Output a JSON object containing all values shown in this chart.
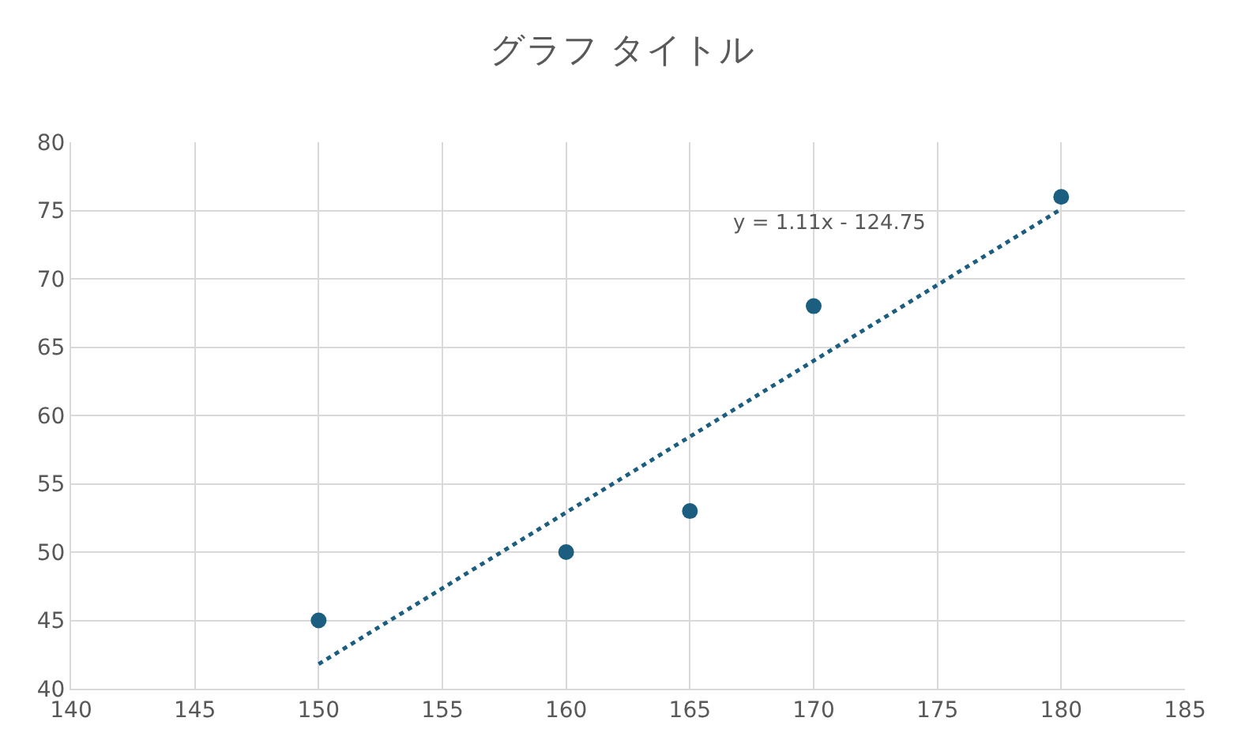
{
  "chart_data": {
    "type": "scatter",
    "title": "グラフ タイトル",
    "series": [
      {
        "color": "#1b5e80",
        "marker": "circle",
        "x": [
          150,
          160,
          165,
          170,
          180
        ],
        "values": [
          45,
          50,
          53,
          68,
          76
        ]
      },
      {
        "type": "line",
        "color": "#1b5e80",
        "marker": "none",
        "line_style": "dotted",
        "x": [
          150,
          180
        ],
        "values": [
          41.8,
          75.1
        ]
      }
    ],
    "annotations": [
      "y = 1.11x - 124.75"
    ],
    "xlim": [
      140,
      185
    ],
    "xticks": [
      140,
      145,
      150,
      155,
      160,
      165,
      170,
      175,
      180,
      185
    ],
    "ylim": [
      40,
      80
    ],
    "yticks": [
      40,
      45,
      50,
      55,
      60,
      65,
      70,
      75,
      80
    ],
    "grid": true
  }
}
